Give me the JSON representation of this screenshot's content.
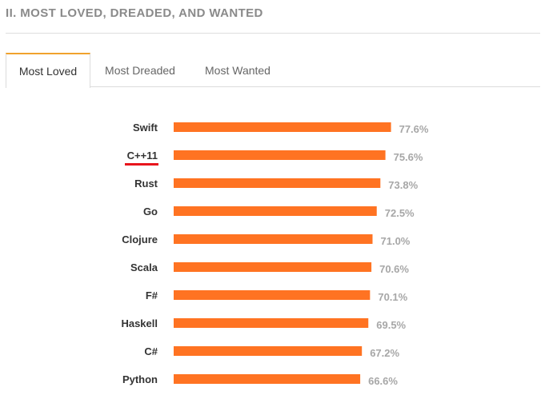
{
  "section": {
    "title": "II. MOST LOVED, DREADED, AND WANTED"
  },
  "tabs": [
    {
      "label": "Most Loved",
      "active": true
    },
    {
      "label": "Most Dreaded",
      "active": false
    },
    {
      "label": "Most Wanted",
      "active": false
    }
  ],
  "colors": {
    "bar": "#ff7322",
    "accent_tab": "#f0a22d",
    "highlight_underline": "#e8151c"
  },
  "chart_data": {
    "type": "bar",
    "orientation": "horizontal",
    "categories": [
      "Swift",
      "C++11",
      "Rust",
      "Go",
      "Clojure",
      "Scala",
      "F#",
      "Haskell",
      "C#",
      "Python"
    ],
    "values": [
      77.6,
      75.6,
      73.8,
      72.5,
      71.0,
      70.6,
      70.1,
      69.5,
      67.2,
      66.6
    ],
    "value_labels": [
      "77.6%",
      "75.6%",
      "73.8%",
      "72.5%",
      "71.0%",
      "70.6%",
      "70.1%",
      "69.5%",
      "67.2%",
      "66.6%"
    ],
    "xlim": [
      0,
      100
    ],
    "grid": false,
    "highlighted_category": "C++11"
  }
}
